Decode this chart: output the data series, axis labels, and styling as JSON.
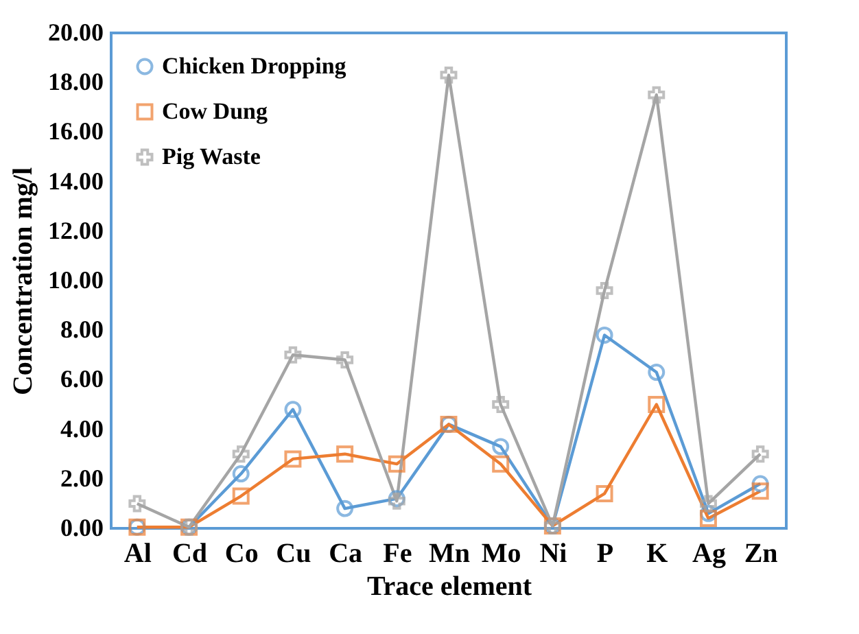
{
  "chart_data": {
    "type": "line",
    "xlabel": "Trace element",
    "ylabel": "Concentration mg/l",
    "categories": [
      "Al",
      "Cd",
      "Co",
      "Cu",
      "Ca",
      "Fe",
      "Mn",
      "Mo",
      "Ni",
      "P",
      "K",
      "Ag",
      "Zn"
    ],
    "series": [
      {
        "name": "Chicken Dropping",
        "color": "#5b9bd5",
        "marker": "circle",
        "values": [
          0.05,
          0.05,
          2.2,
          4.8,
          0.8,
          1.2,
          4.2,
          3.3,
          0.1,
          7.8,
          6.3,
          0.6,
          1.8
        ]
      },
      {
        "name": "Cow Dung",
        "color": "#ed7d31",
        "marker": "square",
        "values": [
          0.05,
          0.05,
          1.3,
          2.8,
          3.0,
          2.6,
          4.2,
          2.6,
          0.1,
          1.4,
          5.0,
          0.4,
          1.5
        ]
      },
      {
        "name": "Pig Waste",
        "color": "#a5a5a5",
        "marker": "cross",
        "values": [
          1.0,
          0.05,
          3.0,
          7.0,
          6.8,
          1.1,
          18.3,
          5.0,
          0.1,
          9.6,
          17.5,
          1.0,
          3.0
        ]
      }
    ],
    "ylim": [
      0,
      20
    ],
    "yticks": [
      {
        "value": 0,
        "label": "0.00"
      },
      {
        "value": 2,
        "label": "2.00"
      },
      {
        "value": 4,
        "label": "4.00"
      },
      {
        "value": 6,
        "label": "6.00"
      },
      {
        "value": 8,
        "label": "8.00"
      },
      {
        "value": 10,
        "label": "10.00"
      },
      {
        "value": 12,
        "label": "12.00"
      },
      {
        "value": 14,
        "label": "14.00"
      },
      {
        "value": 16,
        "label": "16.00"
      },
      {
        "value": 18,
        "label": "18.00"
      },
      {
        "value": 20,
        "label": "20.00"
      }
    ],
    "grid": false,
    "legend": "top left",
    "line_style": "solid"
  }
}
